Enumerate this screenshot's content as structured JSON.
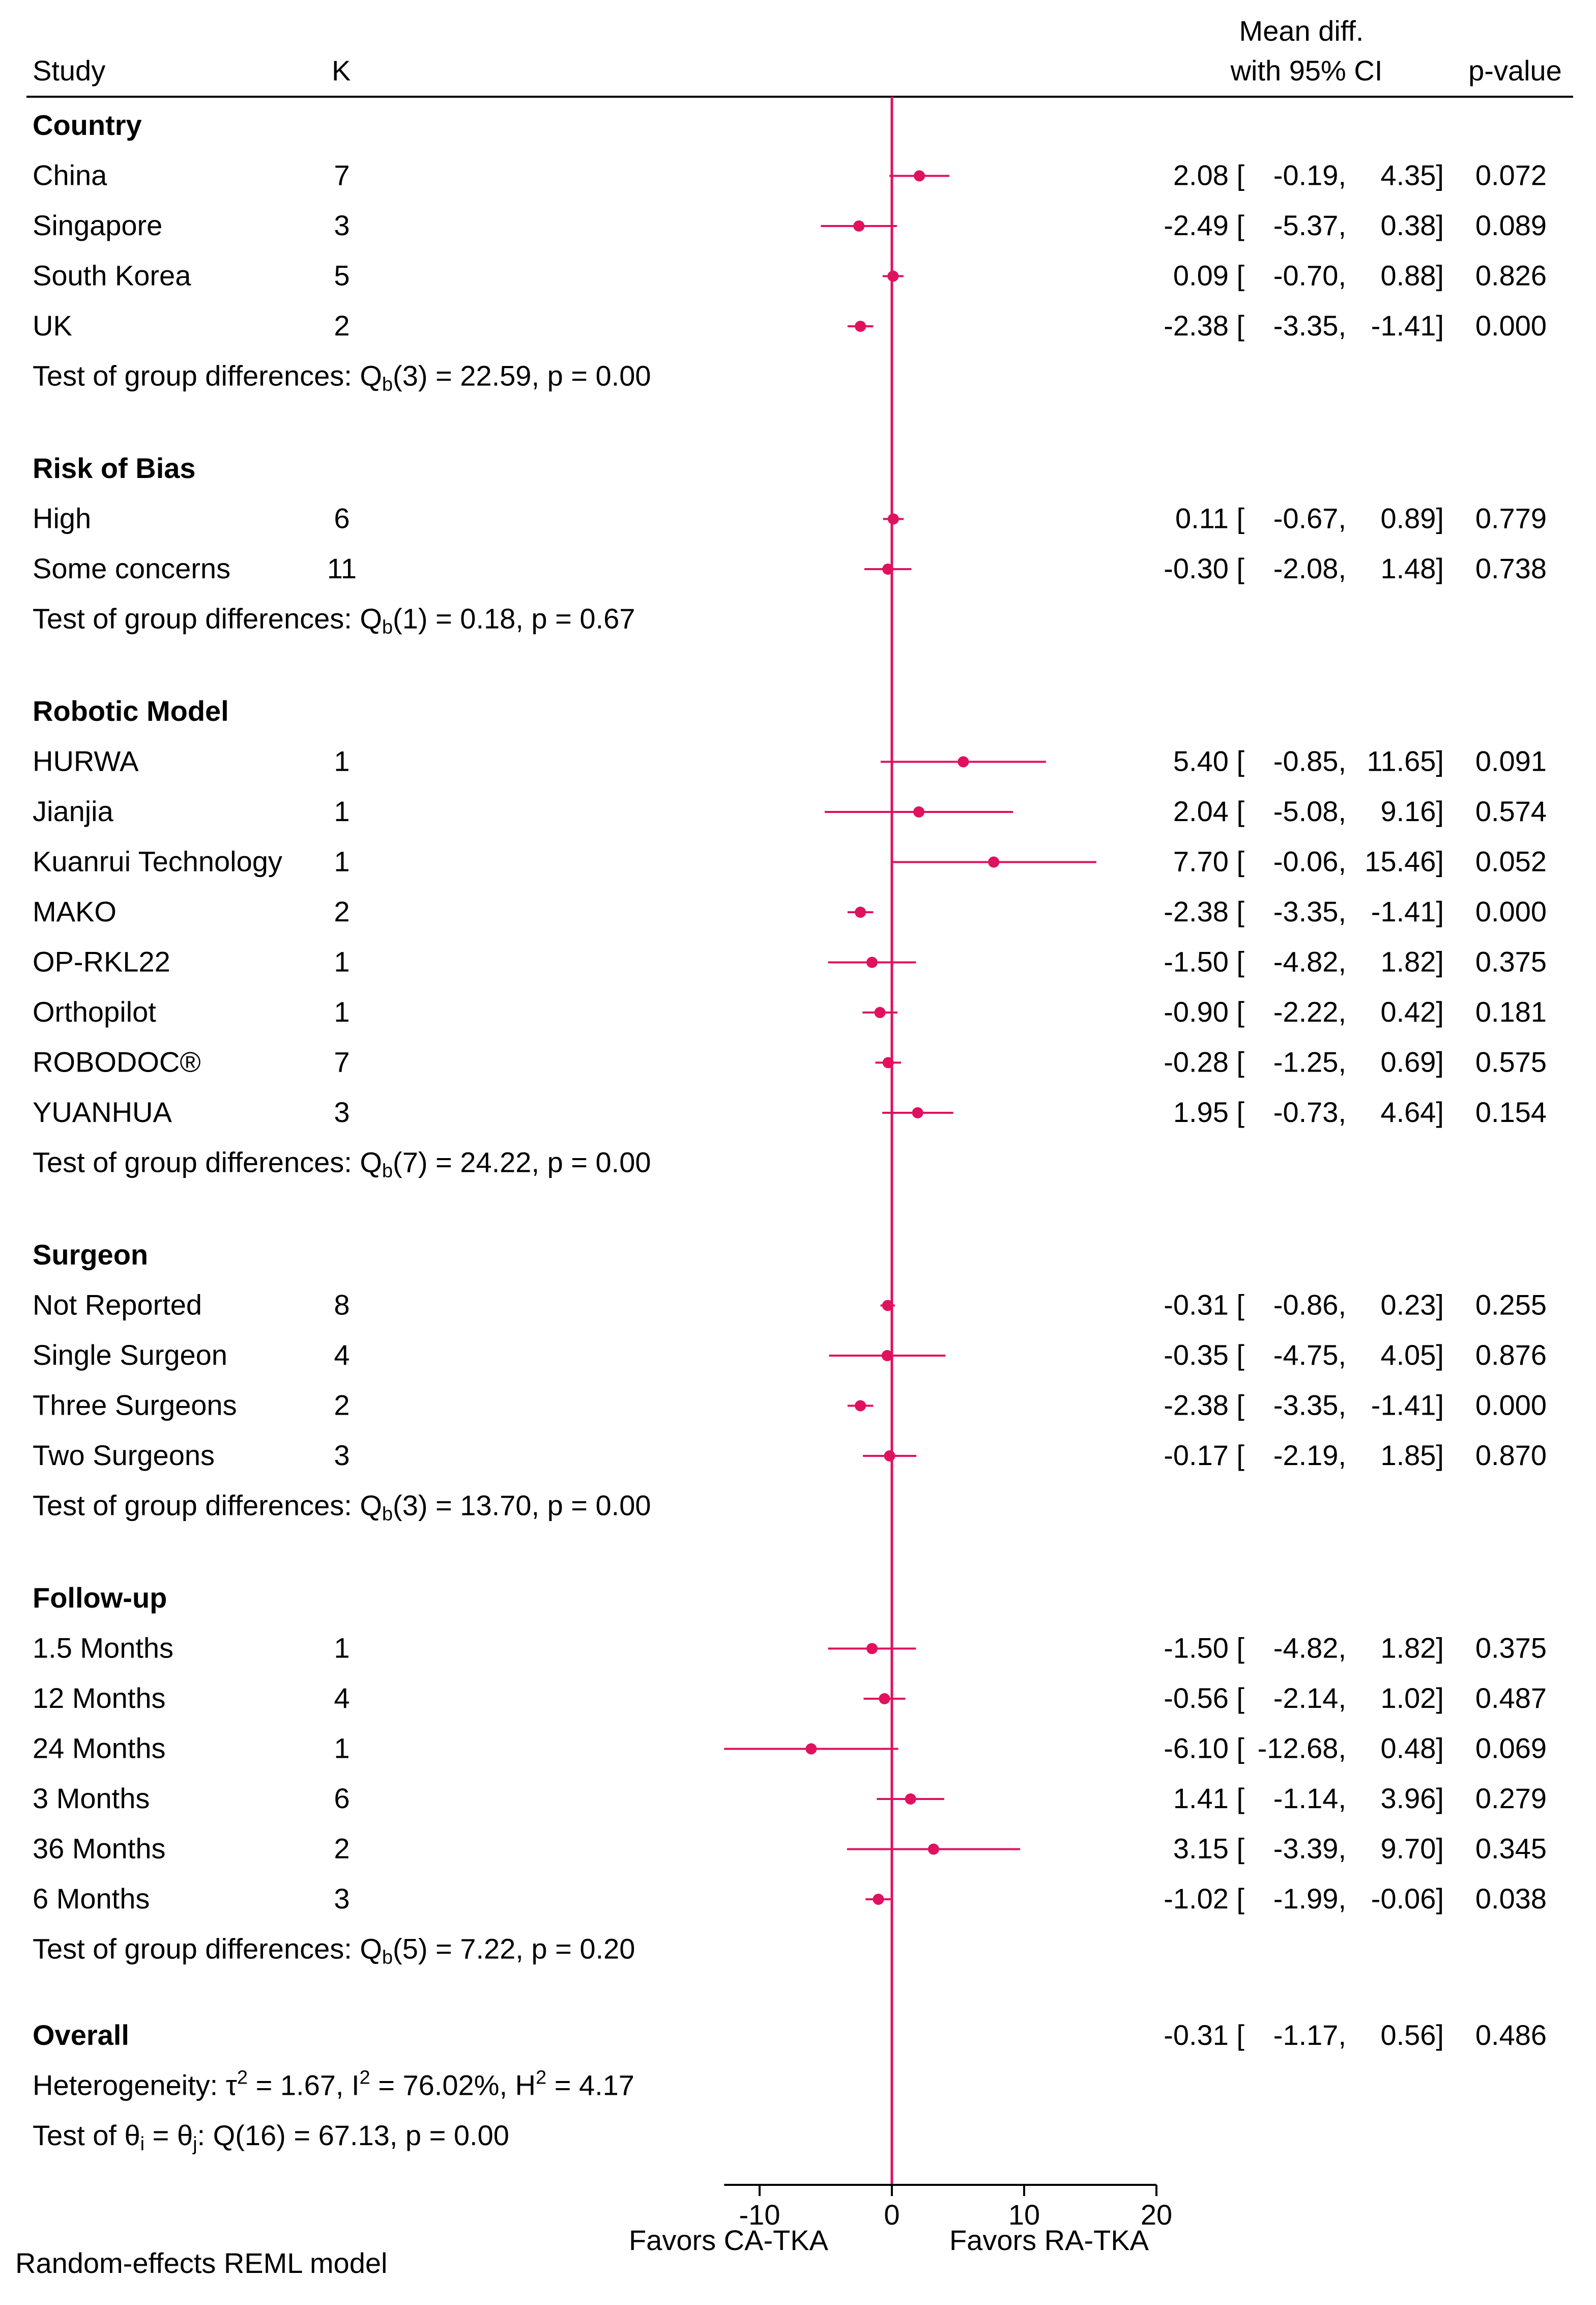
{
  "chart_data": {
    "type": "forest",
    "columns": {
      "study": "Study",
      "k": "K",
      "effect_line1": "Mean diff.",
      "effect_line2": "with 95% CI",
      "pvalue": "p-value"
    },
    "groups": [
      {
        "name": "Country",
        "rows": [
          {
            "label": "China",
            "k": "7",
            "est": 2.08,
            "lo": -0.19,
            "hi": 4.35,
            "est_text": "2.08 [",
            "lo_text": "-0.19,",
            "hi_text": "4.35]",
            "p": "0.072"
          },
          {
            "label": "Singapore",
            "k": "3",
            "est": -2.49,
            "lo": -5.37,
            "hi": 0.38,
            "est_text": "-2.49 [",
            "lo_text": "-5.37,",
            "hi_text": "0.38]",
            "p": "0.089"
          },
          {
            "label": "South Korea",
            "k": "5",
            "est": 0.09,
            "lo": -0.7,
            "hi": 0.88,
            "est_text": "0.09 [",
            "lo_text": "-0.70,",
            "hi_text": "0.88]",
            "p": "0.826"
          },
          {
            "label": "UK",
            "k": "2",
            "est": -2.38,
            "lo": -3.35,
            "hi": -1.41,
            "est_text": "-2.38 [",
            "lo_text": "-3.35,",
            "hi_text": "-1.41]",
            "p": "0.000"
          }
        ],
        "test_prefix": "Test of group differences: Q",
        "test_sub": "b",
        "test_suffix": "(3) = 22.59, p = 0.00"
      },
      {
        "name": "Risk of Bias",
        "rows": [
          {
            "label": "High",
            "k": "6",
            "est": 0.11,
            "lo": -0.67,
            "hi": 0.89,
            "est_text": "0.11 [",
            "lo_text": "-0.67,",
            "hi_text": "0.89]",
            "p": "0.779"
          },
          {
            "label": "Some concerns",
            "k": "11",
            "est": -0.3,
            "lo": -2.08,
            "hi": 1.48,
            "est_text": "-0.30 [",
            "lo_text": "-2.08,",
            "hi_text": "1.48]",
            "p": "0.738"
          }
        ],
        "test_prefix": "Test of group differences: Q",
        "test_sub": "b",
        "test_suffix": "(1) = 0.18, p = 0.67"
      },
      {
        "name": "Robotic Model",
        "rows": [
          {
            "label": "HURWA",
            "k": "1",
            "est": 5.4,
            "lo": -0.85,
            "hi": 11.65,
            "est_text": "5.40 [",
            "lo_text": "-0.85,",
            "hi_text": "11.65]",
            "p": "0.091"
          },
          {
            "label": "Jianjia",
            "k": "1",
            "est": 2.04,
            "lo": -5.08,
            "hi": 9.16,
            "est_text": "2.04 [",
            "lo_text": "-5.08,",
            "hi_text": "9.16]",
            "p": "0.574"
          },
          {
            "label": "Kuanrui Technology",
            "k": "1",
            "est": 7.7,
            "lo": -0.06,
            "hi": 15.46,
            "est_text": "7.70 [",
            "lo_text": "-0.06,",
            "hi_text": "15.46]",
            "p": "0.052"
          },
          {
            "label": "MAKO",
            "k": "2",
            "est": -2.38,
            "lo": -3.35,
            "hi": -1.41,
            "est_text": "-2.38 [",
            "lo_text": "-3.35,",
            "hi_text": "-1.41]",
            "p": "0.000"
          },
          {
            "label": "OP-RKL22",
            "k": "1",
            "est": -1.5,
            "lo": -4.82,
            "hi": 1.82,
            "est_text": "-1.50 [",
            "lo_text": "-4.82,",
            "hi_text": "1.82]",
            "p": "0.375"
          },
          {
            "label": "Orthopilot",
            "k": "1",
            "est": -0.9,
            "lo": -2.22,
            "hi": 0.42,
            "est_text": "-0.90 [",
            "lo_text": "-2.22,",
            "hi_text": "0.42]",
            "p": "0.181"
          },
          {
            "label": "ROBODOC®",
            "k": "7",
            "est": -0.28,
            "lo": -1.25,
            "hi": 0.69,
            "est_text": "-0.28 [",
            "lo_text": "-1.25,",
            "hi_text": "0.69]",
            "p": "0.575"
          },
          {
            "label": "YUANHUA",
            "k": "3",
            "est": 1.95,
            "lo": -0.73,
            "hi": 4.64,
            "est_text": "1.95 [",
            "lo_text": "-0.73,",
            "hi_text": "4.64]",
            "p": "0.154"
          }
        ],
        "test_prefix": "Test of group differences: Q",
        "test_sub": "b",
        "test_suffix": "(7) = 24.22, p = 0.00"
      },
      {
        "name": "Surgeon",
        "rows": [
          {
            "label": "Not Reported",
            "k": "8",
            "est": -0.31,
            "lo": -0.86,
            "hi": 0.23,
            "est_text": "-0.31 [",
            "lo_text": "-0.86,",
            "hi_text": "0.23]",
            "p": "0.255"
          },
          {
            "label": "Single Surgeon",
            "k": "4",
            "est": -0.35,
            "lo": -4.75,
            "hi": 4.05,
            "est_text": "-0.35 [",
            "lo_text": "-4.75,",
            "hi_text": "4.05]",
            "p": "0.876"
          },
          {
            "label": "Three Surgeons",
            "k": "2",
            "est": -2.38,
            "lo": -3.35,
            "hi": -1.41,
            "est_text": "-2.38 [",
            "lo_text": "-3.35,",
            "hi_text": "-1.41]",
            "p": "0.000"
          },
          {
            "label": "Two Surgeons",
            "k": "3",
            "est": -0.17,
            "lo": -2.19,
            "hi": 1.85,
            "est_text": "-0.17 [",
            "lo_text": "-2.19,",
            "hi_text": "1.85]",
            "p": "0.870"
          }
        ],
        "test_prefix": "Test of group differences: Q",
        "test_sub": "b",
        "test_suffix": "(3) = 13.70, p = 0.00"
      },
      {
        "name": "Follow-up",
        "rows": [
          {
            "label": "1.5 Months",
            "k": "1",
            "est": -1.5,
            "lo": -4.82,
            "hi": 1.82,
            "est_text": "-1.50 [",
            "lo_text": "-4.82,",
            "hi_text": "1.82]",
            "p": "0.375"
          },
          {
            "label": "12 Months",
            "k": "4",
            "est": -0.56,
            "lo": -2.14,
            "hi": 1.02,
            "est_text": "-0.56 [",
            "lo_text": "-2.14,",
            "hi_text": "1.02]",
            "p": "0.487"
          },
          {
            "label": "24 Months",
            "k": "1",
            "est": -6.1,
            "lo": -12.68,
            "hi": 0.48,
            "est_text": "-6.10 [",
            "lo_text": "-12.68,",
            "hi_text": "0.48]",
            "p": "0.069"
          },
          {
            "label": "3 Months",
            "k": "6",
            "est": 1.41,
            "lo": -1.14,
            "hi": 3.96,
            "est_text": "1.41 [",
            "lo_text": "-1.14,",
            "hi_text": "3.96]",
            "p": "0.279"
          },
          {
            "label": "36 Months",
            "k": "2",
            "est": 3.15,
            "lo": -3.39,
            "hi": 9.7,
            "est_text": "3.15 [",
            "lo_text": "-3.39,",
            "hi_text": "9.70]",
            "p": "0.345"
          },
          {
            "label": "6 Months",
            "k": "3",
            "est": -1.02,
            "lo": -1.99,
            "hi": -0.06,
            "est_text": "-1.02 [",
            "lo_text": "-1.99,",
            "hi_text": "-0.06]",
            "p": "0.038"
          }
        ],
        "test_prefix": "Test of group differences: Q",
        "test_sub": "b",
        "test_suffix": "(5) = 7.22, p = 0.20"
      }
    ],
    "overall": {
      "label": "Overall",
      "est": -0.31,
      "lo": -1.17,
      "hi": 0.56,
      "est_text": "-0.31 [",
      "lo_text": "-1.17,",
      "hi_text": "0.56]",
      "p": "0.486",
      "het_prefix": "Heterogeneity: τ",
      "het_tau_sup": "2",
      "het_mid": " = 1.67, I",
      "het_i_sup": "2",
      "het_mid2": " = 76.02%, H",
      "het_h_sup": "2",
      "het_end": " = 4.17",
      "theta_prefix": "Test of θ",
      "theta_sub_i": "i",
      "theta_mid": " = θ",
      "theta_sub_j": "j",
      "theta_end": ": Q(16) = 67.13, p = 0.00"
    },
    "x_axis": {
      "min": -12.68,
      "max": 20,
      "ticks": [
        -10,
        0,
        10,
        20
      ],
      "tick_labels": [
        "-10",
        "0",
        "10",
        "20"
      ],
      "reference_line": 0
    },
    "favors_left": "Favors CA-TKA",
    "favors_right": "Favors RA-TKA",
    "model_note": "Random-effects REML model",
    "marker_color": "#e0115f"
  }
}
